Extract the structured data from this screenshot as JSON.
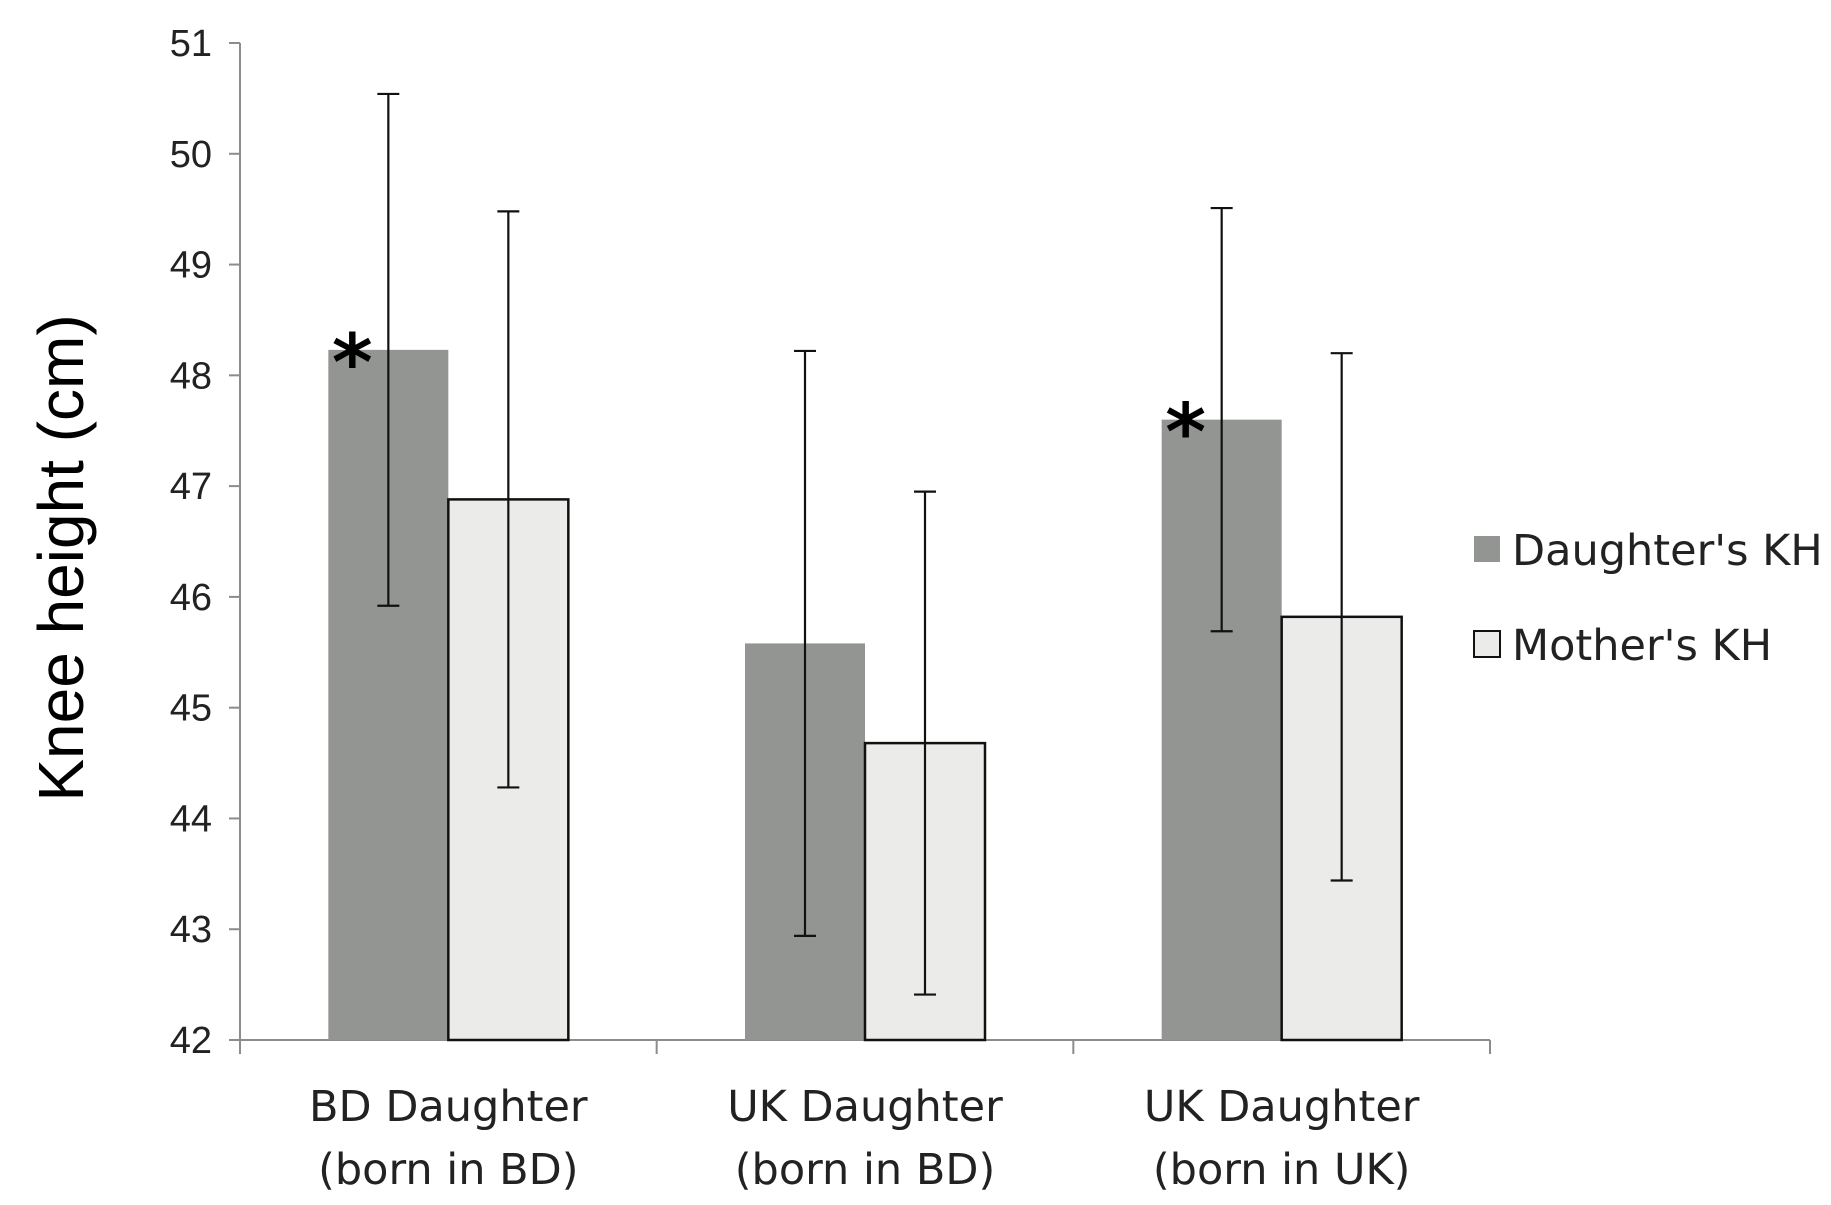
{
  "chart_data": {
    "type": "bar",
    "title": "",
    "xlabel": "",
    "ylabel": "Knee height (cm)",
    "ylim": [
      42,
      51
    ],
    "yticks": [
      "42",
      "43",
      "44",
      "45",
      "46",
      "47",
      "48",
      "49",
      "50",
      "51"
    ],
    "grid": false,
    "legend_position": "right",
    "categories": [
      [
        "BD Daughter",
        "(born in BD)"
      ],
      [
        "UK Daughter",
        "(born in BD)"
      ],
      [
        "UK Daughter",
        "(born in UK)"
      ]
    ],
    "series": [
      {
        "name": "Daughter's KH",
        "color": "#939592",
        "values": [
          48.23,
          45.58,
          47.6
        ],
        "error": [
          2.31,
          2.64,
          1.91
        ],
        "annotations": [
          "*",
          "",
          "*"
        ]
      },
      {
        "name": "Mother's KH",
        "color": "#ebece9",
        "values": [
          46.88,
          44.68,
          45.82
        ],
        "error": [
          2.6,
          2.27,
          2.38
        ],
        "annotations": [
          "",
          "",
          ""
        ]
      }
    ]
  }
}
